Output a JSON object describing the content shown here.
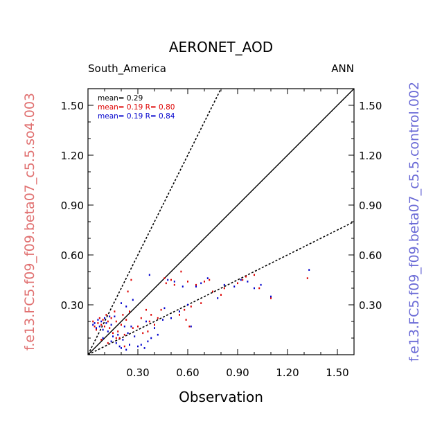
{
  "chart_data": {
    "type": "scatter",
    "title": "AERONET_AOD",
    "left_subtitle": "South_America",
    "right_subtitle": "ANN",
    "xlabel": "Observation",
    "ylabel_left": "f.e13.FC5.f09_f09.beta07_c5.5.so4.003",
    "ylabel_right": "f.e13.FC5.f09_f09.beta07_c5.5.control.002",
    "xlim": [
      0.0,
      1.6
    ],
    "ylim": [
      0.0,
      1.6
    ],
    "xticks": [
      0.3,
      0.6,
      0.9,
      1.2,
      1.5
    ],
    "xtick_labels": [
      "0.30",
      "0.60",
      "0.90",
      "1.20",
      "1.50"
    ],
    "yticks": [
      0.3,
      0.6,
      0.9,
      1.2,
      1.5
    ],
    "ytick_labels": [
      "0.30",
      "0.60",
      "0.90",
      "1.20",
      "1.50"
    ],
    "reference_lines": [
      {
        "style": "solid",
        "slope": 1.0
      },
      {
        "style": "dashed",
        "slope": 2.0
      },
      {
        "style": "dashed",
        "slope": 0.5
      }
    ],
    "stats": [
      {
        "text": "mean= 0.29",
        "color": "#000000"
      },
      {
        "text": "mean= 0.19 R= 0.80",
        "color": "#dd0000"
      },
      {
        "text": "mean= 0.19 R= 0.84",
        "color": "#0000cc"
      }
    ],
    "series": [
      {
        "color": "#dd0000",
        "points": [
          [
            0.03,
            0.2
          ],
          [
            0.04,
            0.17
          ],
          [
            0.05,
            0.15
          ],
          [
            0.06,
            0.19
          ],
          [
            0.07,
            0.22
          ],
          [
            0.08,
            0.18
          ],
          [
            0.09,
            0.21
          ],
          [
            0.1,
            0.17
          ],
          [
            0.11,
            0.24
          ],
          [
            0.12,
            0.2
          ],
          [
            0.13,
            0.16
          ],
          [
            0.14,
            0.22
          ],
          [
            0.15,
            0.13
          ],
          [
            0.16,
            0.26
          ],
          [
            0.17,
            0.2
          ],
          [
            0.18,
            0.14
          ],
          [
            0.19,
            0.1
          ],
          [
            0.2,
            0.18
          ],
          [
            0.21,
            0.24
          ],
          [
            0.22,
            0.12
          ],
          [
            0.23,
            0.21
          ],
          [
            0.24,
            0.38
          ],
          [
            0.25,
            0.26
          ],
          [
            0.26,
            0.45
          ],
          [
            0.27,
            0.16
          ],
          [
            0.3,
            0.17
          ],
          [
            0.32,
            0.22
          ],
          [
            0.33,
            0.13
          ],
          [
            0.35,
            0.27
          ],
          [
            0.36,
            0.14
          ],
          [
            0.37,
            0.2
          ],
          [
            0.38,
            0.24
          ],
          [
            0.4,
            0.18
          ],
          [
            0.42,
            0.22
          ],
          [
            0.44,
            0.27
          ],
          [
            0.46,
            0.46
          ],
          [
            0.47,
            0.43
          ],
          [
            0.5,
            0.45
          ],
          [
            0.52,
            0.42
          ],
          [
            0.55,
            0.24
          ],
          [
            0.56,
            0.5
          ],
          [
            0.58,
            0.27
          ],
          [
            0.6,
            0.44
          ],
          [
            0.62,
            0.29
          ],
          [
            0.65,
            0.42
          ],
          [
            0.68,
            0.31
          ],
          [
            0.7,
            0.44
          ],
          [
            0.73,
            0.45
          ],
          [
            0.75,
            0.38
          ],
          [
            0.8,
            0.36
          ],
          [
            0.82,
            0.4
          ],
          [
            0.9,
            0.43
          ],
          [
            0.93,
            0.45
          ],
          [
            0.95,
            0.47
          ],
          [
            1.0,
            0.48
          ],
          [
            1.03,
            0.4
          ],
          [
            1.1,
            0.34
          ],
          [
            1.32,
            0.46
          ],
          [
            0.59,
            0.21
          ],
          [
            0.61,
            0.17
          ],
          [
            0.08,
            0.09
          ],
          [
            0.12,
            0.07
          ],
          [
            0.17,
            0.1
          ],
          [
            0.22,
            0.05
          ]
        ]
      },
      {
        "color": "#0000cc",
        "points": [
          [
            0.03,
            0.18
          ],
          [
            0.04,
            0.19
          ],
          [
            0.05,
            0.16
          ],
          [
            0.06,
            0.21
          ],
          [
            0.07,
            0.17
          ],
          [
            0.08,
            0.2
          ],
          [
            0.09,
            0.15
          ],
          [
            0.1,
            0.22
          ],
          [
            0.11,
            0.19
          ],
          [
            0.12,
            0.14
          ],
          [
            0.13,
            0.23
          ],
          [
            0.14,
            0.18
          ],
          [
            0.15,
            0.11
          ],
          [
            0.16,
            0.23
          ],
          [
            0.17,
            0.07
          ],
          [
            0.18,
            0.12
          ],
          [
            0.19,
            0.05
          ],
          [
            0.2,
            0.31
          ],
          [
            0.21,
            0.09
          ],
          [
            0.22,
            0.17
          ],
          [
            0.23,
            0.29
          ],
          [
            0.24,
            0.13
          ],
          [
            0.25,
            0.06
          ],
          [
            0.27,
            0.33
          ],
          [
            0.28,
            0.11
          ],
          [
            0.3,
            0.05
          ],
          [
            0.32,
            0.06
          ],
          [
            0.34,
            0.04
          ],
          [
            0.35,
            0.2
          ],
          [
            0.36,
            0.08
          ],
          [
            0.37,
            0.48
          ],
          [
            0.38,
            0.1
          ],
          [
            0.4,
            0.16
          ],
          [
            0.42,
            0.12
          ],
          [
            0.45,
            0.21
          ],
          [
            0.48,
            0.45
          ],
          [
            0.5,
            0.22
          ],
          [
            0.52,
            0.44
          ],
          [
            0.55,
            0.26
          ],
          [
            0.57,
            0.41
          ],
          [
            0.6,
            0.3
          ],
          [
            0.62,
            0.17
          ],
          [
            0.65,
            0.41
          ],
          [
            0.68,
            0.43
          ],
          [
            0.72,
            0.46
          ],
          [
            0.78,
            0.34
          ],
          [
            0.82,
            0.42
          ],
          [
            0.88,
            0.41
          ],
          [
            0.92,
            0.45
          ],
          [
            0.96,
            0.44
          ],
          [
            1.0,
            0.4
          ],
          [
            1.04,
            0.42
          ],
          [
            1.1,
            0.35
          ],
          [
            1.33,
            0.51
          ],
          [
            0.46,
            0.28
          ],
          [
            0.26,
            0.17
          ],
          [
            0.09,
            0.1
          ],
          [
            0.14,
            0.08
          ],
          [
            0.2,
            0.04
          ],
          [
            0.23,
            0.03
          ]
        ]
      }
    ],
    "grid": false,
    "legend": "none"
  }
}
